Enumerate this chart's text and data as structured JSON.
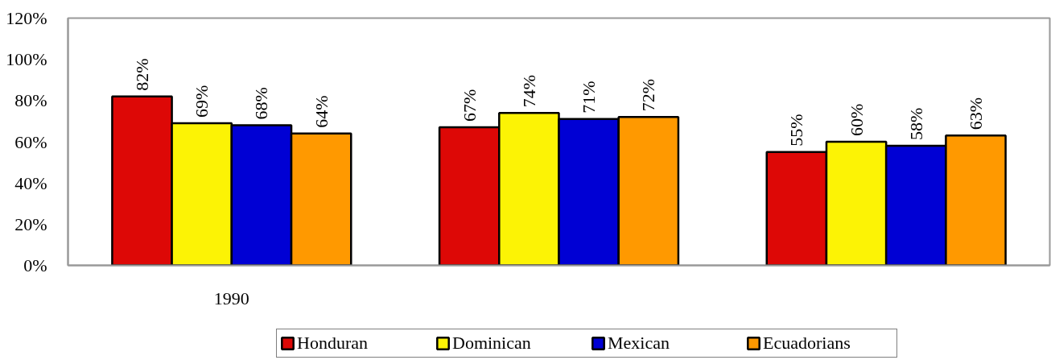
{
  "chart_data": {
    "type": "bar",
    "categories": [
      "1990",
      null,
      null
    ],
    "series": [
      {
        "name": "Honduran",
        "color": "#dd0806",
        "values": [
          82,
          67,
          55
        ],
        "value_labels": [
          "82%",
          "67%",
          "55%"
        ]
      },
      {
        "name": "Dominican",
        "color": "#fcf305",
        "values": [
          69,
          74,
          60
        ],
        "value_labels": [
          "69%",
          "74%",
          "60%"
        ]
      },
      {
        "name": "Mexican",
        "color": "#0000d4",
        "values": [
          68,
          71,
          58
        ],
        "value_labels": [
          "68%",
          "71%",
          "58%"
        ]
      },
      {
        "name": "Ecuadorians",
        "color": "#ff9900",
        "values": [
          64,
          72,
          63
        ],
        "value_labels": [
          "64%",
          "72%",
          "63%"
        ]
      }
    ],
    "ylim": [
      0,
      120
    ],
    "yticks": [
      {
        "value": 0,
        "label": "0%"
      },
      {
        "value": 20,
        "label": "20%"
      },
      {
        "value": 40,
        "label": "40%"
      },
      {
        "value": 60,
        "label": "60%"
      },
      {
        "value": 80,
        "label": "80%"
      },
      {
        "value": 100,
        "label": "100%"
      },
      {
        "value": 120,
        "label": "120%"
      }
    ],
    "legend": "bottom"
  }
}
